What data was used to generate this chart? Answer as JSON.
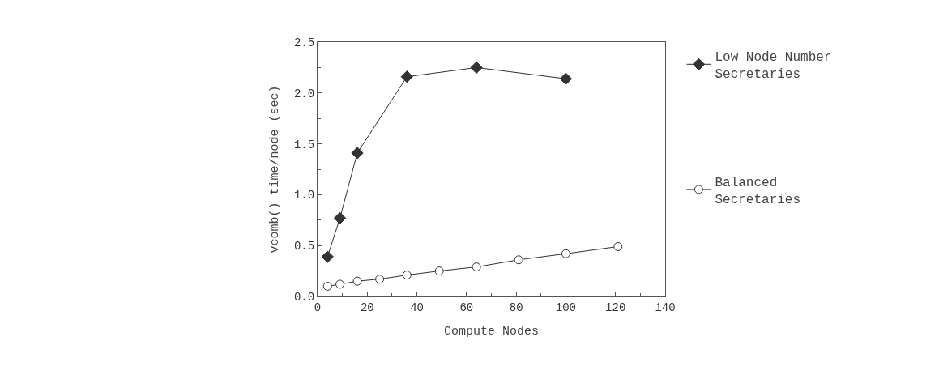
{
  "chart_data": {
    "type": "line",
    "xlabel": "Compute Nodes",
    "ylabel": "vcomb() time/node (sec)",
    "xlim": [
      0,
      140
    ],
    "xticks": [
      0,
      20,
      40,
      60,
      80,
      100,
      120,
      140
    ],
    "ylim": [
      0,
      2.5
    ],
    "yticks": [
      {
        "value": 0,
        "label": "0.0"
      },
      0.5,
      {
        "value": 1,
        "label": "1.0"
      },
      1.5,
      {
        "value": 2,
        "label": "2.0"
      },
      2.5
    ],
    "legend": "right",
    "series": [
      {
        "name": "Low Node Number\nSecretaries",
        "color": "#333333",
        "marker": "diamond",
        "x": [
          4,
          9,
          16,
          36,
          64,
          100
        ],
        "values": [
          0.39,
          0.77,
          1.41,
          2.16,
          2.25,
          2.14
        ]
      },
      {
        "name": "Balanced\nSecretaries",
        "color": "#333333",
        "marker": "circle",
        "x": [
          4,
          9,
          16,
          25,
          36,
          49,
          64,
          81,
          100,
          121
        ],
        "values": [
          0.1,
          0.12,
          0.15,
          0.17,
          0.21,
          0.25,
          0.29,
          0.36,
          0.42,
          0.49
        ]
      }
    ]
  }
}
